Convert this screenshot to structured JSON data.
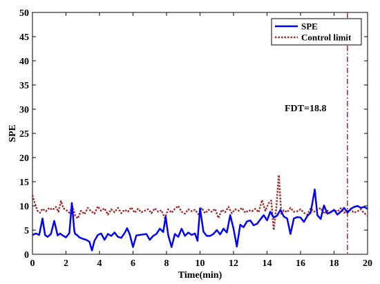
{
  "chart_data": {
    "type": "line",
    "xlabel": "Time(min)",
    "ylabel": "SPE",
    "xlim": [
      0,
      20
    ],
    "ylim": [
      0,
      50
    ],
    "xticks": [
      "0",
      "2",
      "4",
      "6",
      "8",
      "10",
      "12",
      "14",
      "16",
      "18",
      "20"
    ],
    "yticks": [
      "0",
      "5",
      "10",
      "15",
      "20",
      "25",
      "30",
      "35",
      "40",
      "45",
      "50"
    ],
    "grid": false,
    "legend_position": "top-right",
    "annotation": {
      "text": "FDT=18.8",
      "x": 18.8
    },
    "series": [
      {
        "name": "SPE",
        "color": "#0000ff",
        "style": "solid",
        "x": [
          0,
          0.2,
          0.4,
          0.6,
          0.75,
          0.9,
          1.1,
          1.3,
          1.5,
          1.65,
          1.8,
          2.0,
          2.2,
          2.35,
          2.5,
          2.55,
          2.65,
          2.8,
          3.0,
          3.2,
          3.4,
          3.55,
          3.7,
          3.9,
          4.1,
          4.3,
          4.5,
          4.7,
          4.9,
          5.1,
          5.3,
          5.5,
          5.65,
          5.8,
          6.0,
          6.2,
          6.4,
          6.6,
          6.8,
          7.0,
          7.2,
          7.4,
          7.6,
          7.8,
          7.95,
          8.1,
          8.3,
          8.5,
          8.7,
          8.9,
          9.1,
          9.3,
          9.5,
          9.7,
          9.85,
          10.0,
          10.2,
          10.4,
          10.6,
          10.8,
          11.0,
          11.2,
          11.4,
          11.6,
          11.8,
          12.0,
          12.2,
          12.4,
          12.6,
          12.8,
          13.0,
          13.2,
          13.4,
          13.6,
          13.8,
          14.0,
          14.2,
          14.4,
          14.6,
          14.8,
          15.0,
          15.2,
          15.4,
          15.6,
          15.8,
          16.0,
          16.2,
          16.4,
          16.6,
          16.85,
          17.0,
          17.2,
          17.4,
          17.6,
          17.8,
          18.0,
          18.2,
          18.4,
          18.6,
          18.8,
          19.0,
          19.2,
          19.4,
          19.6,
          19.8,
          20.0
        ],
        "values": [
          4.0,
          4.3,
          4.0,
          7.4,
          4.0,
          3.6,
          4.2,
          6.9,
          3.9,
          4.3,
          3.9,
          3.5,
          4.4,
          10.6,
          4.8,
          4.2,
          4.0,
          3.5,
          3.2,
          3.0,
          2.6,
          0.8,
          2.8,
          4.0,
          4.3,
          3.0,
          4.2,
          3.8,
          4.5,
          3.6,
          3.4,
          4.4,
          5.4,
          4.2,
          1.5,
          3.9,
          4.0,
          4.1,
          4.2,
          3.0,
          3.8,
          4.2,
          5.3,
          4.6,
          7.8,
          4.0,
          1.5,
          4.2,
          3.6,
          5.3,
          3.8,
          4.5,
          4.0,
          4.3,
          2.8,
          9.5,
          4.7,
          3.8,
          3.8,
          4.2,
          5.0,
          4.1,
          5.3,
          4.5,
          8.1,
          5.3,
          1.6,
          6.1,
          5.6,
          6.8,
          7.0,
          6.0,
          6.3,
          7.2,
          8.1,
          7.0,
          8.8,
          7.6,
          8.0,
          9.2,
          7.8,
          7.4,
          4.2,
          7.4,
          7.7,
          7.6,
          6.7,
          7.9,
          8.6,
          13.4,
          8.1,
          7.3,
          10.1,
          8.4,
          8.7,
          9.2,
          8.2,
          8.8,
          9.6,
          8.6,
          9.4,
          9.8,
          10.0,
          9.6,
          9.8,
          9.4
        ]
      },
      {
        "name": "Control limit",
        "color": "#a52a2a",
        "style": "dotted",
        "x": [
          0,
          0.15,
          0.3,
          0.45,
          0.6,
          0.8,
          1.0,
          1.2,
          1.4,
          1.55,
          1.7,
          1.85,
          2.0,
          2.2,
          2.4,
          2.55,
          2.7,
          2.9,
          3.1,
          3.3,
          3.5,
          3.7,
          3.9,
          4.1,
          4.3,
          4.5,
          4.7,
          4.9,
          5.1,
          5.3,
          5.5,
          5.7,
          5.9,
          6.1,
          6.3,
          6.5,
          6.7,
          6.9,
          7.1,
          7.3,
          7.5,
          7.7,
          7.9,
          8.1,
          8.3,
          8.5,
          8.7,
          8.9,
          9.1,
          9.3,
          9.5,
          9.7,
          9.9,
          10.1,
          10.3,
          10.5,
          10.7,
          10.9,
          11.1,
          11.3,
          11.5,
          11.7,
          11.9,
          12.1,
          12.3,
          12.5,
          12.7,
          12.9,
          13.1,
          13.3,
          13.5,
          13.7,
          13.9,
          14.1,
          14.25,
          14.4,
          14.55,
          14.7,
          14.85,
          15.0,
          15.2,
          15.4,
          15.6,
          15.8,
          16.0,
          16.2,
          16.4,
          16.6,
          16.8,
          17.0,
          17.2,
          17.4,
          17.6,
          17.8,
          18.0,
          18.2,
          18.4,
          18.6,
          18.8,
          19.0,
          19.2,
          19.4,
          19.6,
          19.8,
          20.0
        ],
        "values": [
          12.2,
          10.5,
          9.0,
          8.6,
          9.4,
          8.9,
          9.6,
          9.2,
          9.8,
          8.8,
          11.0,
          9.5,
          9.2,
          8.6,
          9.8,
          8.0,
          7.4,
          9.0,
          8.3,
          9.6,
          8.9,
          8.4,
          9.9,
          9.0,
          9.5,
          8.2,
          9.3,
          8.7,
          9.6,
          8.5,
          9.2,
          8.8,
          9.7,
          8.6,
          9.4,
          8.7,
          9.0,
          9.3,
          8.5,
          9.5,
          8.8,
          9.1,
          7.5,
          9.3,
          8.6,
          9.4,
          10.0,
          8.8,
          8.4,
          9.3,
          8.9,
          9.2,
          8.3,
          9.6,
          8.5,
          9.2,
          8.8,
          9.4,
          7.5,
          9.2,
          8.7,
          9.8,
          8.5,
          9.3,
          9.0,
          9.6,
          8.6,
          9.1,
          8.9,
          9.4,
          8.7,
          11.2,
          9.0,
          10.6,
          11.1,
          5.0,
          9.5,
          16.4,
          8.4,
          9.1,
          8.7,
          9.6,
          8.8,
          8.9,
          9.3,
          8.6,
          8.2,
          9.5,
          8.8,
          9.2,
          9.6,
          8.4,
          9.0,
          8.7,
          9.1,
          8.8,
          9.5,
          8.6,
          9.0,
          9.2,
          8.6,
          8.9,
          9.3,
          8.5,
          8.0
        ]
      },
      {
        "name": "",
        "color": "#a52a2a",
        "style": "dashdot",
        "vertical_at_x": 18.8
      }
    ]
  }
}
